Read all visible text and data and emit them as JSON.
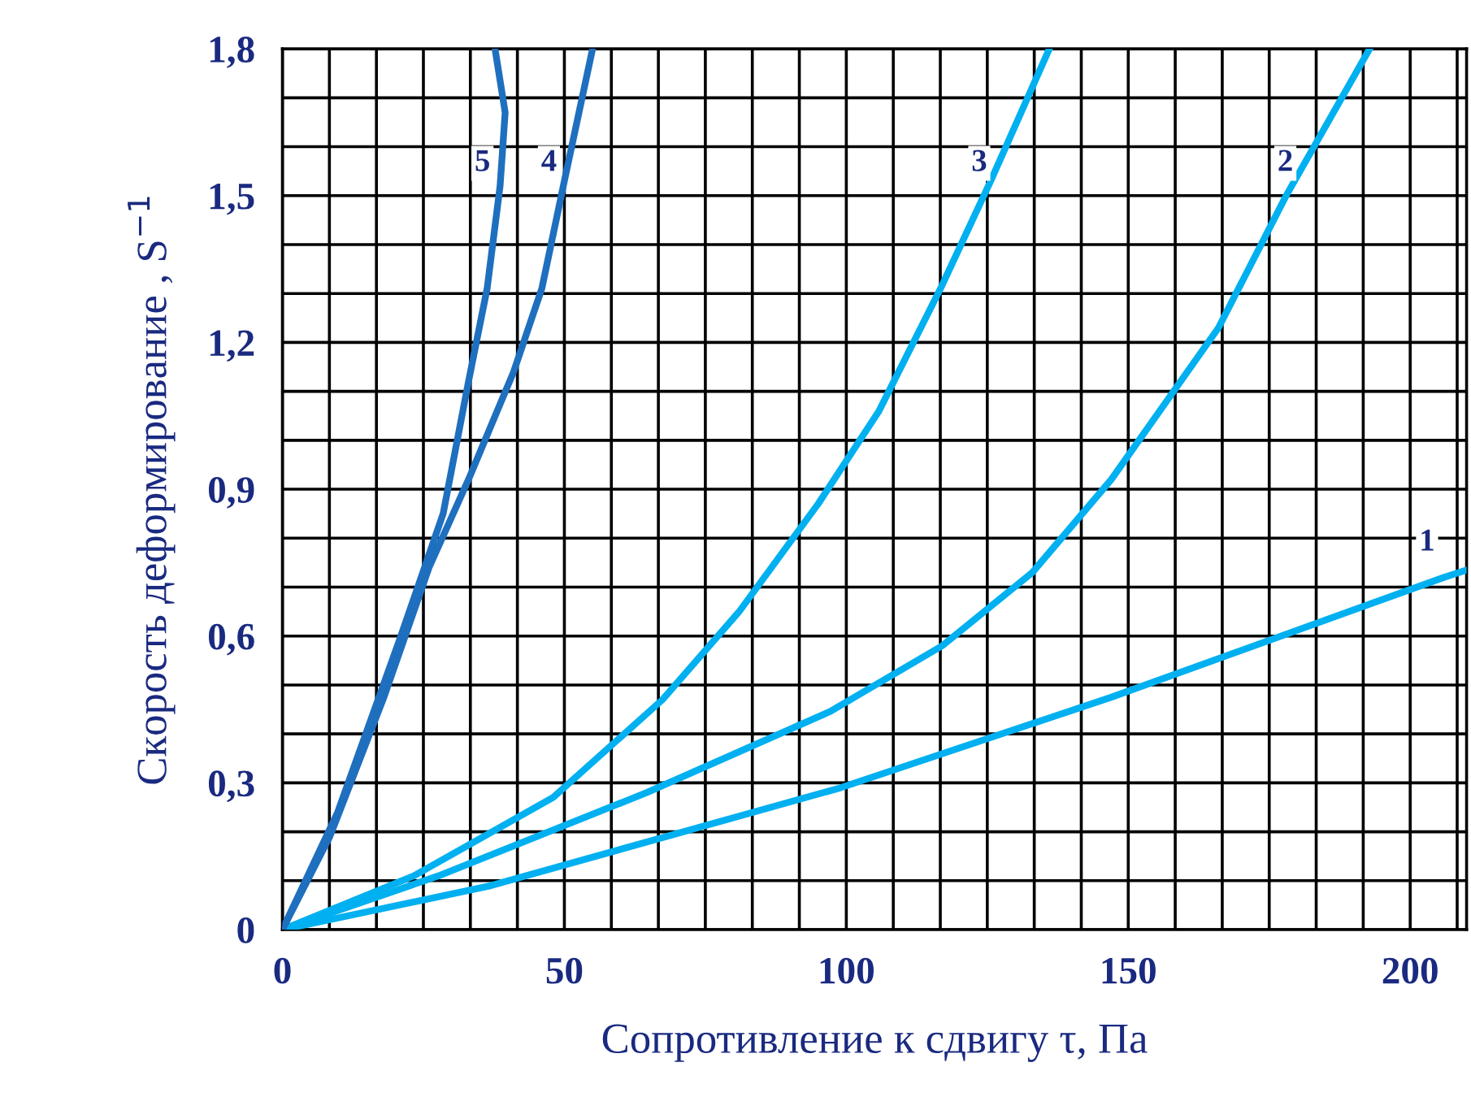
{
  "chart_data": {
    "type": "line",
    "xlabel": "Сопротивление к сдвигу τ, Па",
    "ylabel": "Скорость деформирование , S$^{−1}$",
    "xlim": [
      0,
      210
    ],
    "ylim": [
      0,
      1.8
    ],
    "xticks": [
      0,
      {
        "value": 8.33,
        "label": null
      },
      {
        "value": 16.67,
        "label": null
      },
      {
        "value": 25,
        "label": null
      },
      {
        "value": 33.33,
        "label": null
      },
      {
        "value": 41.67,
        "label": null
      },
      50,
      {
        "value": 58.33,
        "label": null
      },
      {
        "value": 66.67,
        "label": null
      },
      {
        "value": 75,
        "label": null
      },
      {
        "value": 83.33,
        "label": null
      },
      {
        "value": 91.67,
        "label": null
      },
      100,
      {
        "value": 108.33,
        "label": null
      },
      {
        "value": 116.67,
        "label": null
      },
      {
        "value": 125,
        "label": null
      },
      {
        "value": 133.33,
        "label": null
      },
      {
        "value": 141.67,
        "label": null
      },
      150,
      {
        "value": 158.33,
        "label": null
      },
      {
        "value": 166.67,
        "label": null
      },
      {
        "value": 175,
        "label": null
      },
      {
        "value": 183.33,
        "label": null
      },
      {
        "value": 191.67,
        "label": null
      },
      200,
      {
        "value": 208.33,
        "label": null
      }
    ],
    "yticks": [
      0,
      {
        "value": 0.1,
        "label": null
      },
      {
        "value": 0.2,
        "label": null
      },
      {
        "value": 0.3,
        "label": "0,3"
      },
      {
        "value": 0.4,
        "label": null
      },
      {
        "value": 0.5,
        "label": null
      },
      {
        "value": 0.6,
        "label": "0,6"
      },
      {
        "value": 0.7,
        "label": null
      },
      {
        "value": 0.8,
        "label": null
      },
      {
        "value": 0.9,
        "label": "0,9"
      },
      {
        "value": 1.0,
        "label": null
      },
      {
        "value": 1.1,
        "label": null
      },
      {
        "value": 1.2,
        "label": "1,2"
      },
      {
        "value": 1.3,
        "label": null
      },
      {
        "value": 1.4,
        "label": null
      },
      {
        "value": 1.5,
        "label": "1,5"
      },
      {
        "value": 1.6,
        "label": null
      },
      {
        "value": 1.7,
        "label": null
      },
      {
        "value": 1.8,
        "label": "1,8"
      }
    ],
    "grid": true,
    "legend": false,
    "marker": "none",
    "line_style": "solid",
    "series": [
      {
        "name": "1",
        "color": "#00b0f0",
        "x": [
          0,
          37,
          99,
          147,
          206,
          210
        ],
        "values": [
          0,
          0.09,
          0.29,
          0.475,
          0.72,
          0.735
        ]
      },
      {
        "name": "2",
        "color": "#00b0f0",
        "x": [
          0,
          27.7,
          64.6,
          97,
          117,
          133,
          147,
          166,
          178,
          192.8
        ],
        "values": [
          0,
          0.11,
          0.28,
          0.445,
          0.58,
          0.73,
          0.92,
          1.23,
          1.5,
          1.8
        ]
      },
      {
        "name": "3",
        "color": "#00b0f0",
        "x": [
          0,
          23.3,
          48,
          67.4,
          81,
          95,
          105.8,
          116.7,
          125.6,
          136
        ],
        "values": [
          0,
          0.11,
          0.27,
          0.47,
          0.65,
          0.87,
          1.06,
          1.31,
          1.53,
          1.8
        ]
      },
      {
        "name": "4",
        "color": "#1f6fbf",
        "x": [
          0,
          8.4,
          18,
          26,
          33,
          41,
          46,
          50,
          55
        ],
        "values": [
          0,
          0.19,
          0.475,
          0.74,
          0.92,
          1.14,
          1.31,
          1.53,
          1.8
        ]
      },
      {
        "name": "5",
        "color": "#1f6fbf",
        "x": [
          0,
          9.8,
          20.7,
          28.5,
          33,
          36.3,
          38.6,
          39.5,
          37.7
        ],
        "values": [
          0,
          0.24,
          0.59,
          0.85,
          1.12,
          1.31,
          1.52,
          1.67,
          1.8
        ]
      }
    ]
  }
}
